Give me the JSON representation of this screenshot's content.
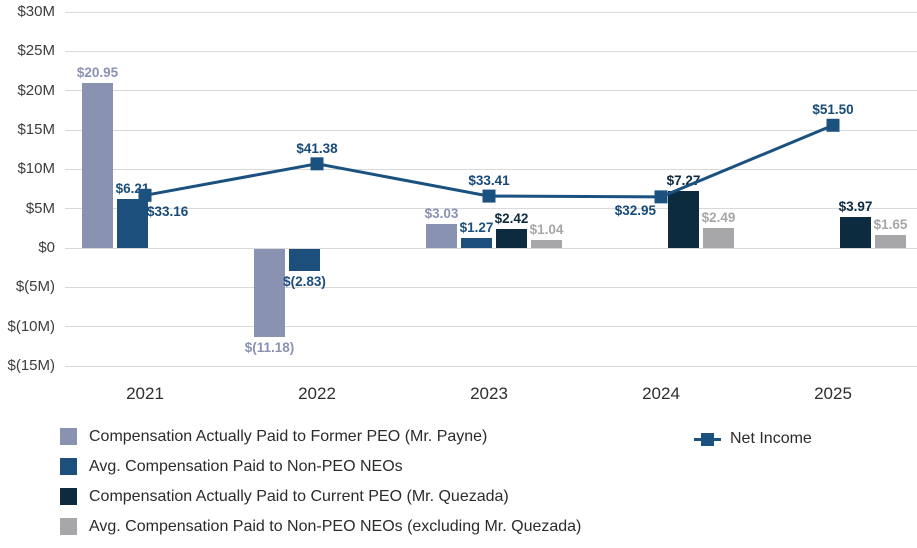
{
  "chart_data": {
    "type": "bar-line-combo",
    "title": "",
    "categories": [
      "2021",
      "2022",
      "2023",
      "2024",
      "2025"
    ],
    "y_axis": {
      "tick_labels": [
        "$30M",
        "$25M",
        "$20M",
        "$15M",
        "$10M",
        "$5M",
        "$0",
        "$(5M)",
        "$(10M)",
        "$(15M)"
      ],
      "tick_values": [
        30,
        25,
        20,
        15,
        10,
        5,
        0,
        -5,
        -10,
        -15
      ],
      "ylim": [
        -15,
        30
      ],
      "grid": true
    },
    "series": [
      {
        "name": "Compensation Actually Paid to Former PEO (Mr. Payne)",
        "color": "#8A92B2",
        "values": [
          20.95,
          -11.18,
          3.03,
          null,
          null
        ],
        "labels": [
          "$20.95",
          "$(11.18)",
          "$3.03",
          null,
          null
        ]
      },
      {
        "name": "Avg. Compensation Paid to Non-PEO NEOs",
        "color": "#1D4F7C",
        "values": [
          6.21,
          -2.83,
          1.27,
          null,
          null
        ],
        "labels": [
          "$6.21",
          "$(2.83)",
          "$1.27",
          null,
          null
        ]
      },
      {
        "name": "Compensation Actually Paid to Current PEO (Mr. Quezada)",
        "color": "#0D2B3E",
        "values": [
          null,
          null,
          2.42,
          7.27,
          3.97
        ],
        "labels": [
          null,
          null,
          "$2.42",
          "$7.27",
          "$3.97"
        ]
      },
      {
        "name": "Avg. Compensation Paid to Non-PEO NEOs (excluding Mr. Quezada)",
        "color": "#A7A7A9",
        "values": [
          null,
          null,
          1.04,
          2.49,
          1.65
        ],
        "labels": [
          null,
          null,
          "$1.04",
          "$2.49",
          "$1.65"
        ]
      }
    ],
    "line_series": {
      "name": "Net Income",
      "color": "#1A517F",
      "label_color": "#174A77",
      "values": [
        33.16,
        41.38,
        33.41,
        32.95,
        51.5
      ],
      "labels": [
        "$33.16",
        "$41.38",
        "$33.41",
        "$32.95",
        "$51.50"
      ],
      "plot_values_m": [
        6.7,
        10.7,
        6.6,
        6.5,
        15.6
      ],
      "label_positions": [
        "below-right",
        "above",
        "above",
        "below-left",
        "above"
      ]
    },
    "legend_position": "bottom"
  }
}
